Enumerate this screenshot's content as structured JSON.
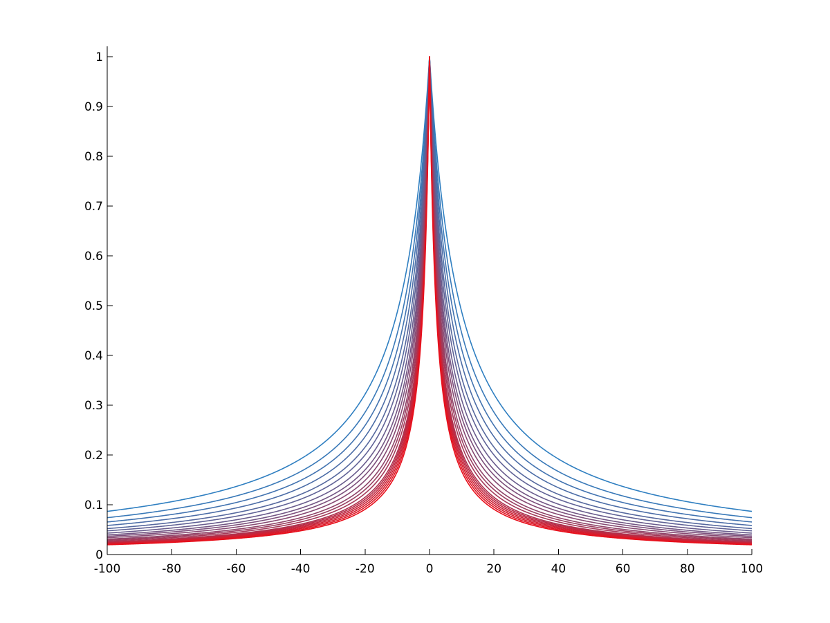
{
  "chart_data": {
    "type": "line",
    "title": "",
    "xlabel": "",
    "ylabel": "",
    "xlim": [
      -100,
      100
    ],
    "ylim": [
      0,
      1
    ],
    "x_ticks": [
      "-100",
      "-80",
      "-60",
      "-40",
      "-20",
      "0",
      "20",
      "40",
      "60",
      "80",
      "100"
    ],
    "y_ticks": [
      "0",
      "0.1",
      "0.2",
      "0.3",
      "0.4",
      "0.5",
      "0.6",
      "0.7",
      "0.8",
      "0.9",
      "1"
    ],
    "grid": false,
    "legend": "none",
    "colors": {
      "first_series": "#2f7fc1",
      "last_series": "#e8101c",
      "axes": "#000000"
    },
    "series_formula": "y = 1 / (1 + |x| / w)",
    "series_width_w": [
      9.5,
      8.0,
      7.0,
      6.2,
      5.5,
      5.0,
      4.5,
      4.1,
      3.8,
      3.5,
      3.2,
      3.0,
      2.8,
      2.6,
      2.5,
      2.4,
      2.3,
      2.2,
      2.1,
      2.0
    ],
    "series": [
      {
        "x": [
          -100,
          -80,
          -60,
          -40,
          -20,
          -10,
          0,
          10,
          20,
          40,
          60,
          80,
          100
        ],
        "y": [
          0.087,
          0.106,
          0.137,
          0.192,
          0.322,
          0.487,
          1,
          0.487,
          0.322,
          0.192,
          0.137,
          0.106,
          0.087
        ]
      },
      {
        "x": [
          -100,
          -80,
          -60,
          -40,
          -20,
          -10,
          0,
          10,
          20,
          40,
          60,
          80,
          100
        ],
        "y": [
          0.074,
          0.091,
          0.118,
          0.167,
          0.286,
          0.444,
          1,
          0.444,
          0.286,
          0.167,
          0.118,
          0.091,
          0.074
        ]
      },
      {
        "x": [
          -100,
          -80,
          -60,
          -40,
          -20,
          -10,
          0,
          10,
          20,
          40,
          60,
          80,
          100
        ],
        "y": [
          0.065,
          0.08,
          0.104,
          0.149,
          0.259,
          0.412,
          1,
          0.412,
          0.259,
          0.149,
          0.104,
          0.08,
          0.065
        ]
      },
      {
        "x": [
          -100,
          -80,
          -60,
          -40,
          -20,
          -10,
          0,
          10,
          20,
          40,
          60,
          80,
          100
        ],
        "y": [
          0.058,
          0.072,
          0.094,
          0.134,
          0.237,
          0.383,
          1,
          0.383,
          0.237,
          0.134,
          0.094,
          0.072,
          0.058
        ]
      },
      {
        "x": [
          -100,
          -80,
          -60,
          -40,
          -20,
          -10,
          0,
          10,
          20,
          40,
          60,
          80,
          100
        ],
        "y": [
          0.052,
          0.064,
          0.084,
          0.121,
          0.216,
          0.355,
          1,
          0.355,
          0.216,
          0.121,
          0.084,
          0.064,
          0.052
        ]
      },
      {
        "x": [
          -100,
          -80,
          -60,
          -40,
          -20,
          -10,
          0,
          10,
          20,
          40,
          60,
          80,
          100
        ],
        "y": [
          0.048,
          0.059,
          0.077,
          0.111,
          0.2,
          0.333,
          1,
          0.333,
          0.2,
          0.111,
          0.077,
          0.059,
          0.048
        ]
      },
      {
        "x": [
          -100,
          -80,
          -60,
          -40,
          -20,
          -10,
          0,
          10,
          20,
          40,
          60,
          80,
          100
        ],
        "y": [
          0.043,
          0.053,
          0.07,
          0.101,
          0.184,
          0.31,
          1,
          0.31,
          0.184,
          0.101,
          0.07,
          0.053,
          0.043
        ]
      },
      {
        "x": [
          -100,
          -80,
          -60,
          -40,
          -20,
          -10,
          0,
          10,
          20,
          40,
          60,
          80,
          100
        ],
        "y": [
          0.039,
          0.049,
          0.064,
          0.093,
          0.17,
          0.291,
          1,
          0.291,
          0.17,
          0.093,
          0.064,
          0.049,
          0.039
        ]
      },
      {
        "x": [
          -100,
          -80,
          -60,
          -40,
          -20,
          -10,
          0,
          10,
          20,
          40,
          60,
          80,
          100
        ],
        "y": [
          0.037,
          0.045,
          0.06,
          0.087,
          0.16,
          0.275,
          1,
          0.275,
          0.16,
          0.087,
          0.06,
          0.045,
          0.037
        ]
      },
      {
        "x": [
          -100,
          -80,
          -60,
          -40,
          -20,
          -10,
          0,
          10,
          20,
          40,
          60,
          80,
          100
        ],
        "y": [
          0.034,
          0.042,
          0.055,
          0.08,
          0.149,
          0.259,
          1,
          0.259,
          0.149,
          0.08,
          0.055,
          0.042,
          0.034
        ]
      },
      {
        "x": [
          -100,
          -80,
          -60,
          -40,
          -20,
          -10,
          0,
          10,
          20,
          40,
          60,
          80,
          100
        ],
        "y": [
          0.031,
          0.038,
          0.051,
          0.074,
          0.138,
          0.242,
          1,
          0.242,
          0.138,
          0.074,
          0.051,
          0.038,
          0.031
        ]
      },
      {
        "x": [
          -100,
          -80,
          -60,
          -40,
          -20,
          -10,
          0,
          10,
          20,
          40,
          60,
          80,
          100
        ],
        "y": [
          0.029,
          0.036,
          0.048,
          0.07,
          0.13,
          0.231,
          1,
          0.231,
          0.13,
          0.07,
          0.048,
          0.036,
          0.029
        ]
      },
      {
        "x": [
          -100,
          -80,
          -60,
          -40,
          -20,
          -10,
          0,
          10,
          20,
          40,
          60,
          80,
          100
        ],
        "y": [
          0.027,
          0.034,
          0.045,
          0.065,
          0.123,
          0.219,
          1,
          0.219,
          0.123,
          0.065,
          0.045,
          0.034,
          0.027
        ]
      },
      {
        "x": [
          -100,
          -80,
          -60,
          -40,
          -20,
          -10,
          0,
          10,
          20,
          40,
          60,
          80,
          100
        ],
        "y": [
          0.025,
          0.031,
          0.042,
          0.061,
          0.115,
          0.206,
          1,
          0.206,
          0.115,
          0.061,
          0.042,
          0.031,
          0.025
        ]
      },
      {
        "x": [
          -100,
          -80,
          -60,
          -40,
          -20,
          -10,
          0,
          10,
          20,
          40,
          60,
          80,
          100
        ],
        "y": [
          0.024,
          0.03,
          0.04,
          0.059,
          0.111,
          0.2,
          1,
          0.2,
          0.111,
          0.059,
          0.04,
          0.03,
          0.024
        ]
      },
      {
        "x": [
          -100,
          -80,
          -60,
          -40,
          -20,
          -10,
          0,
          10,
          20,
          40,
          60,
          80,
          100
        ],
        "y": [
          0.023,
          0.029,
          0.038,
          0.057,
          0.107,
          0.194,
          1,
          0.194,
          0.107,
          0.057,
          0.038,
          0.029,
          0.023
        ]
      },
      {
        "x": [
          -100,
          -80,
          -60,
          -40,
          -20,
          -10,
          0,
          10,
          20,
          40,
          60,
          80,
          100
        ],
        "y": [
          0.022,
          0.028,
          0.037,
          0.054,
          0.103,
          0.187,
          1,
          0.187,
          0.103,
          0.054,
          0.037,
          0.028,
          0.022
        ]
      },
      {
        "x": [
          -100,
          -80,
          -60,
          -40,
          -20,
          -10,
          0,
          10,
          20,
          40,
          60,
          80,
          100
        ],
        "y": [
          0.022,
          0.027,
          0.035,
          0.052,
          0.099,
          0.18,
          1,
          0.18,
          0.099,
          0.052,
          0.035,
          0.027,
          0.022
        ]
      },
      {
        "x": [
          -100,
          -80,
          -60,
          -40,
          -20,
          -10,
          0,
          10,
          20,
          40,
          60,
          80,
          100
        ],
        "y": [
          0.021,
          0.026,
          0.034,
          0.05,
          0.095,
          0.174,
          1,
          0.174,
          0.095,
          0.05,
          0.034,
          0.026,
          0.021
        ]
      },
      {
        "x": [
          -100,
          -80,
          -60,
          -40,
          -20,
          -10,
          0,
          10,
          20,
          40,
          60,
          80,
          100
        ],
        "y": [
          0.02,
          0.024,
          0.032,
          0.048,
          0.091,
          0.167,
          1,
          0.167,
          0.091,
          0.048,
          0.032,
          0.024,
          0.02
        ]
      }
    ]
  }
}
